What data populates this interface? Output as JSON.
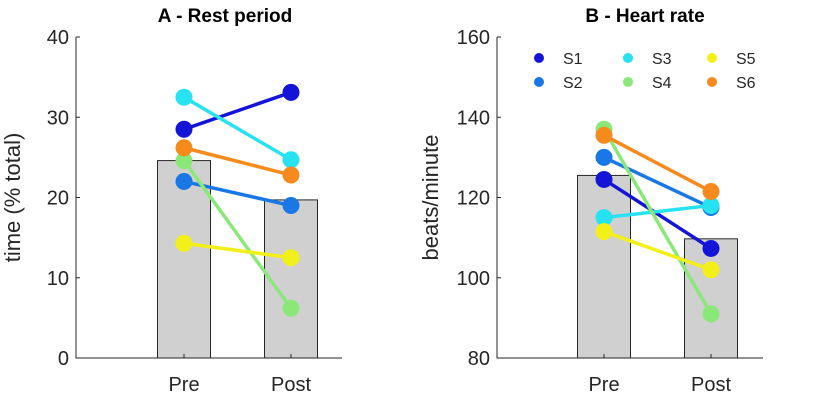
{
  "chart_data": [
    {
      "type": "bar",
      "title": "A - Rest period",
      "ylabel": "time (% total)",
      "xlabel": "",
      "ylim": [
        0,
        40
      ],
      "yticks": [
        0,
        10,
        20,
        30,
        40
      ],
      "categories": [
        "Pre",
        "Post"
      ],
      "bars": [
        24.6,
        19.7
      ],
      "bar_color": "#d0d0d0",
      "series": [
        {
          "name": "S1",
          "color": "#1414d8",
          "values": [
            28.5,
            33.1
          ]
        },
        {
          "name": "S2",
          "color": "#1a78e6",
          "values": [
            22.0,
            19.0
          ]
        },
        {
          "name": "S3",
          "color": "#27e2f0",
          "values": [
            32.5,
            24.7
          ]
        },
        {
          "name": "S4",
          "color": "#8ae879",
          "values": [
            24.6,
            6.2
          ]
        },
        {
          "name": "S5",
          "color": "#f2f018",
          "values": [
            14.3,
            12.5
          ]
        },
        {
          "name": "S6",
          "color": "#f78a1c",
          "values": [
            26.2,
            22.8
          ]
        }
      ]
    },
    {
      "type": "bar",
      "title": "B - Heart rate",
      "ylabel": "beats/minute",
      "xlabel": "",
      "ylim": [
        80,
        160
      ],
      "yticks": [
        80,
        100,
        120,
        140,
        160
      ],
      "categories": [
        "Pre",
        "Post"
      ],
      "bars": [
        125.5,
        109.7
      ],
      "bar_color": "#d0d0d0",
      "legend": "top",
      "series": [
        {
          "name": "S1",
          "color": "#1414d8",
          "values": [
            124.5,
            107.3
          ]
        },
        {
          "name": "S2",
          "color": "#1a78e6",
          "values": [
            130.0,
            117.5
          ]
        },
        {
          "name": "S3",
          "color": "#27e2f0",
          "values": [
            115.0,
            118.0
          ]
        },
        {
          "name": "S4",
          "color": "#8ae879",
          "values": [
            137.0,
            91.0
          ]
        },
        {
          "name": "S5",
          "color": "#f2f018",
          "values": [
            111.5,
            102.0
          ]
        },
        {
          "name": "S6",
          "color": "#f78a1c",
          "values": [
            135.5,
            121.5
          ]
        }
      ]
    }
  ]
}
